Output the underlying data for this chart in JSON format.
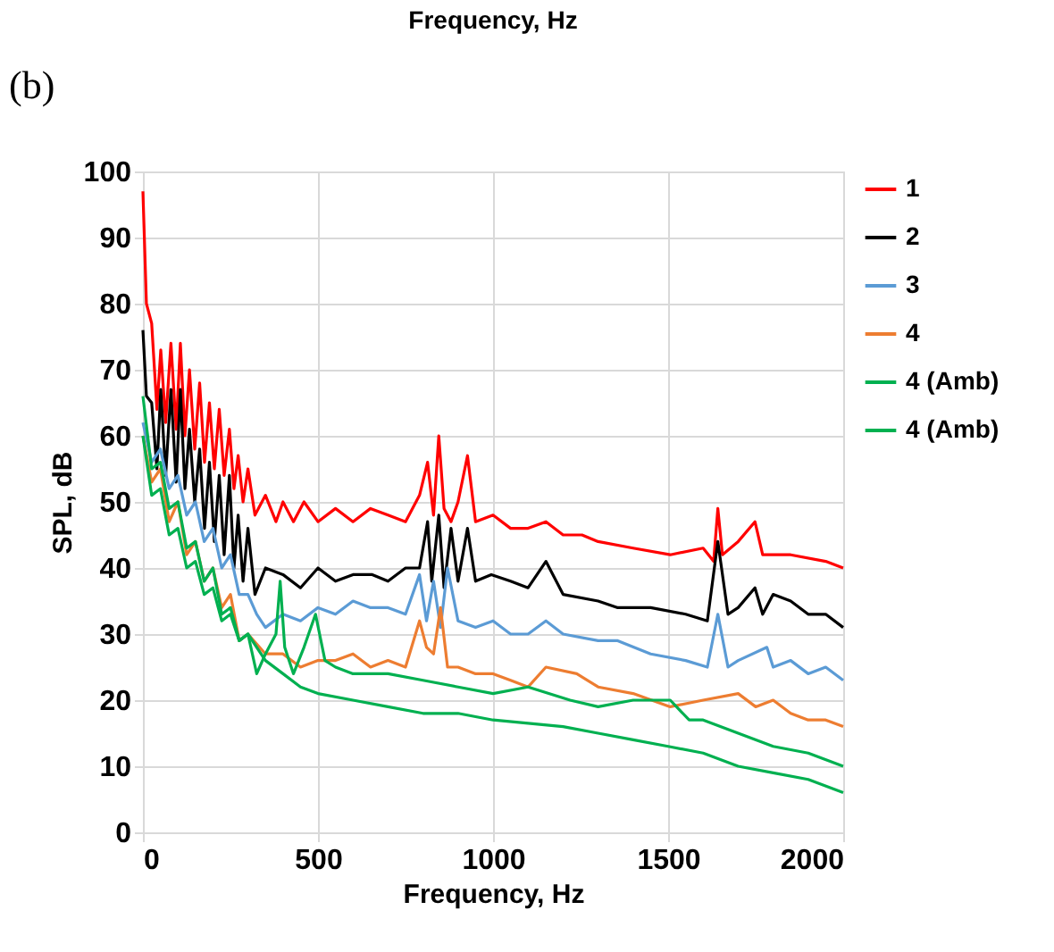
{
  "chart_data": {
    "type": "line",
    "title": "Frequency, Hz",
    "xlabel": "Frequency, Hz",
    "ylabel": "SPL, dB",
    "annotations": [
      "(b)"
    ],
    "xlim": [
      0,
      2000
    ],
    "xticks": [
      0,
      500,
      1000,
      1500,
      2000
    ],
    "ylim": [
      0,
      100
    ],
    "yticks": [
      0,
      10,
      20,
      30,
      40,
      50,
      60,
      70,
      80,
      90,
      100
    ],
    "grid": true,
    "legend": "right",
    "marker": "none",
    "line_style": "solid",
    "series": [
      {
        "name": "1",
        "color": "#ff0000",
        "x": [
          0,
          10,
          25,
          40,
          51,
          65,
          80,
          95,
          107,
          120,
          133,
          148,
          162,
          176,
          190,
          204,
          218,
          232,
          247,
          260,
          272,
          286,
          300,
          320,
          350,
          380,
          400,
          430,
          460,
          500,
          550,
          600,
          650,
          700,
          750,
          790,
          813,
          830,
          845,
          860,
          880,
          900,
          927,
          950,
          1000,
          1050,
          1100,
          1151,
          1200,
          1254,
          1300,
          1400,
          1506,
          1600,
          1630,
          1642,
          1655,
          1700,
          1748,
          1770,
          1850,
          1950,
          2000
        ],
        "values": [
          97,
          80,
          77,
          64,
          73,
          62,
          74,
          61,
          74,
          60,
          70,
          58,
          68,
          56,
          65,
          55,
          64,
          54,
          61,
          52,
          57,
          50,
          55,
          48,
          51,
          47,
          50,
          47,
          50,
          47,
          49,
          47,
          49,
          48,
          47,
          51,
          56,
          48,
          60,
          49,
          47,
          50,
          57,
          47,
          48,
          46,
          46,
          47,
          45,
          45,
          44,
          43,
          42,
          43,
          41,
          49,
          42,
          44,
          47,
          42,
          42,
          41,
          40
        ]
      },
      {
        "name": "2",
        "color": "#000000",
        "x": [
          0,
          10,
          25,
          40,
          51,
          65,
          80,
          95,
          107,
          120,
          133,
          148,
          162,
          176,
          190,
          204,
          218,
          232,
          247,
          260,
          272,
          286,
          300,
          320,
          350,
          400,
          450,
          500,
          550,
          600,
          655,
          700,
          750,
          790,
          813,
          825,
          845,
          860,
          880,
          900,
          927,
          950,
          995,
          1050,
          1100,
          1151,
          1200,
          1300,
          1356,
          1450,
          1550,
          1612,
          1642,
          1671,
          1700,
          1748,
          1770,
          1800,
          1850,
          1900,
          1950,
          2000
        ],
        "values": [
          76,
          66,
          65,
          55,
          67,
          54,
          67,
          53,
          67,
          52,
          61,
          50,
          58,
          46,
          56,
          44,
          54,
          42,
          54,
          40,
          48,
          38,
          46,
          36,
          40,
          39,
          37,
          40,
          38,
          39,
          39,
          38,
          40,
          40,
          47,
          38,
          48,
          37,
          46,
          38,
          46,
          38,
          39,
          38,
          37,
          41,
          36,
          35,
          34,
          34,
          33,
          32,
          44,
          33,
          34,
          37,
          33,
          36,
          35,
          33,
          33,
          31
        ]
      },
      {
        "name": "3",
        "color": "#5b9bd5",
        "x": [
          0,
          25,
          50,
          75,
          100,
          125,
          150,
          175,
          200,
          225,
          250,
          275,
          300,
          325,
          350,
          400,
          450,
          500,
          550,
          600,
          650,
          700,
          750,
          790,
          810,
          830,
          850,
          870,
          900,
          950,
          1000,
          1050,
          1100,
          1151,
          1200,
          1300,
          1356,
          1450,
          1550,
          1612,
          1642,
          1671,
          1700,
          1782,
          1800,
          1850,
          1900,
          1950,
          2000
        ],
        "values": [
          62,
          56,
          58,
          52,
          54,
          48,
          50,
          44,
          46,
          40,
          42,
          36,
          36,
          33,
          31,
          33,
          32,
          34,
          33,
          35,
          34,
          34,
          33,
          39,
          32,
          38,
          31,
          40,
          32,
          31,
          32,
          30,
          30,
          32,
          30,
          29,
          29,
          27,
          26,
          25,
          33,
          25,
          26,
          28,
          25,
          26,
          24,
          25,
          23
        ]
      },
      {
        "name": "4",
        "color": "#ed7d31",
        "x": [
          0,
          25,
          50,
          75,
          100,
          125,
          150,
          175,
          200,
          225,
          250,
          275,
          300,
          350,
          400,
          450,
          500,
          550,
          600,
          650,
          700,
          750,
          790,
          810,
          830,
          850,
          870,
          900,
          950,
          1000,
          1050,
          1100,
          1151,
          1239,
          1300,
          1400,
          1506,
          1600,
          1700,
          1750,
          1800,
          1850,
          1900,
          1950,
          2000
        ],
        "values": [
          60,
          53,
          55,
          47,
          50,
          42,
          44,
          38,
          40,
          34,
          36,
          29,
          30,
          27,
          27,
          25,
          26,
          26,
          27,
          25,
          26,
          25,
          32,
          28,
          27,
          34,
          25,
          25,
          24,
          24,
          23,
          22,
          25,
          24,
          22,
          21,
          19,
          20,
          21,
          19,
          20,
          18,
          17,
          17,
          16
        ]
      },
      {
        "name": "4 (Amb)",
        "color": "#00b050",
        "x": [
          0,
          25,
          50,
          75,
          100,
          125,
          150,
          175,
          200,
          225,
          250,
          275,
          300,
          325,
          350,
          380,
          392,
          405,
          430,
          460,
          493,
          520,
          550,
          600,
          700,
          800,
          900,
          1000,
          1100,
          1220,
          1300,
          1400,
          1506,
          1560,
          1600,
          1700,
          1800,
          1900,
          2000
        ],
        "values": [
          66,
          55,
          56,
          49,
          50,
          43,
          44,
          38,
          40,
          33,
          34,
          29,
          30,
          24,
          27,
          30,
          38,
          28,
          24,
          28,
          33,
          26,
          25,
          24,
          24,
          23,
          22,
          21,
          22,
          20,
          19,
          20,
          20,
          17,
          17,
          15,
          13,
          12,
          10
        ]
      },
      {
        "name": "4 (Amb)",
        "color": "#00b050",
        "x": [
          0,
          25,
          50,
          75,
          100,
          125,
          150,
          175,
          200,
          225,
          250,
          275,
          300,
          350,
          400,
          450,
          500,
          600,
          700,
          800,
          900,
          1000,
          1100,
          1200,
          1300,
          1400,
          1500,
          1600,
          1700,
          1800,
          1900,
          2000
        ],
        "values": [
          60,
          51,
          52,
          45,
          46,
          40,
          41,
          36,
          37,
          32,
          33,
          29,
          30,
          26,
          24,
          22,
          21,
          20,
          19,
          18,
          18,
          17,
          16.5,
          16,
          15,
          14,
          13,
          12,
          10,
          9,
          8,
          6
        ]
      }
    ]
  }
}
